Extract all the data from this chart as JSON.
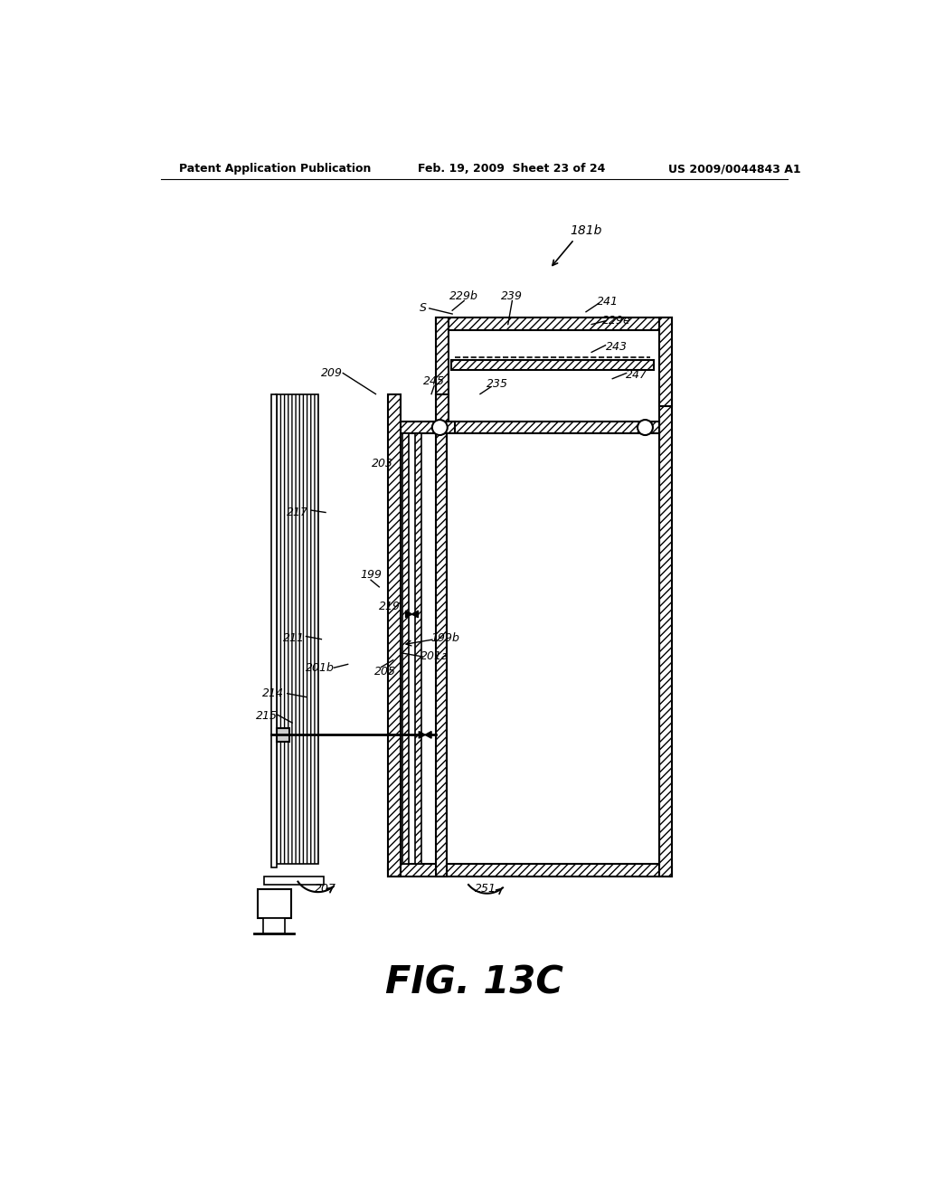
{
  "bg_color": "#ffffff",
  "line_color": "#000000",
  "header_left": "Patent Application Publication",
  "header_mid": "Feb. 19, 2009  Sheet 23 of 24",
  "header_right": "US 2009/0044843 A1",
  "figure_label": "FIG. 13C",
  "ref_181b": "181b",
  "ref_229b": "229b",
  "ref_239": "239",
  "ref_241": "241",
  "ref_229e": "229e",
  "ref_243": "243",
  "ref_247": "247",
  "ref_245": "245",
  "ref_235": "235",
  "ref_209": "209",
  "ref_203": "203",
  "ref_199": "199",
  "ref_219": "219",
  "ref_217": "217",
  "ref_211": "211",
  "ref_199b": "199b",
  "ref_201a": "201a",
  "ref_201b": "201b",
  "ref_205": "205",
  "ref_214": "214",
  "ref_215": "215",
  "ref_207": "207",
  "ref_251": "251",
  "ref_S": "S"
}
